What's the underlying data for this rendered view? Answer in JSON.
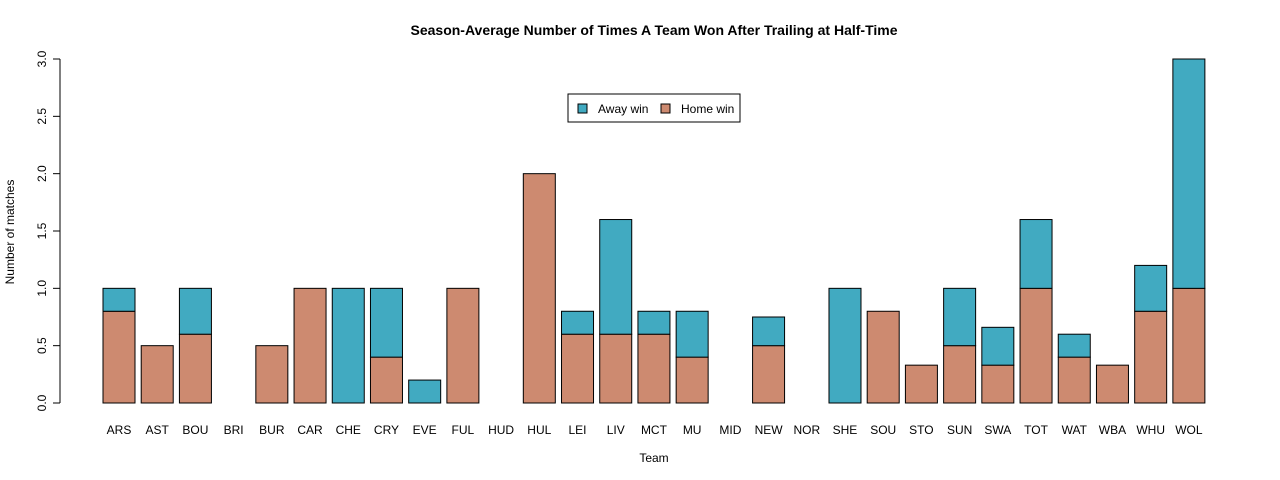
{
  "chart_data": {
    "type": "bar",
    "stacked": true,
    "title": "Season-Average Number of Times A Team Won After Trailing at Half-Time",
    "xlabel": "Team",
    "ylabel": "Number of matches",
    "ylim": [
      0,
      3
    ],
    "yticks": [
      "0.0",
      "0.5",
      "1.0",
      "1.5",
      "2.0",
      "2.5",
      "3.0"
    ],
    "legend_position": "top-center",
    "categories": [
      "ARS",
      "AST",
      "BOU",
      "BRI",
      "BUR",
      "CAR",
      "CHE",
      "CRY",
      "EVE",
      "FUL",
      "HUD",
      "HUL",
      "LEI",
      "LIV",
      "MCT",
      "MU",
      "MID",
      "NEW",
      "NOR",
      "SHE",
      "SOU",
      "STO",
      "SUN",
      "SWA",
      "TOT",
      "WAT",
      "WBA",
      "WHU",
      "WOL"
    ],
    "series": [
      {
        "name": "Home win",
        "color": "#CD8A70",
        "values": [
          0.8,
          0.5,
          0.6,
          0,
          0.5,
          1.0,
          0,
          0.4,
          0,
          1.0,
          0,
          2.0,
          0.6,
          0.6,
          0.6,
          0.4,
          0,
          0.5,
          0,
          0,
          0.8,
          0.33,
          0.5,
          0.33,
          1.0,
          0.4,
          0.33,
          0.8,
          1.0
        ]
      },
      {
        "name": "Away win",
        "color": "#41AAC1",
        "values": [
          0.2,
          0,
          0.4,
          0,
          0,
          0,
          1.0,
          0.6,
          0.2,
          0,
          0,
          0,
          0.2,
          1.0,
          0.2,
          0.4,
          0,
          0.25,
          0,
          1.0,
          0,
          0,
          0.5,
          0.33,
          0.6,
          0.2,
          0,
          0.4,
          2.0
        ]
      }
    ],
    "legend_order": [
      "Away win",
      "Home win"
    ]
  }
}
